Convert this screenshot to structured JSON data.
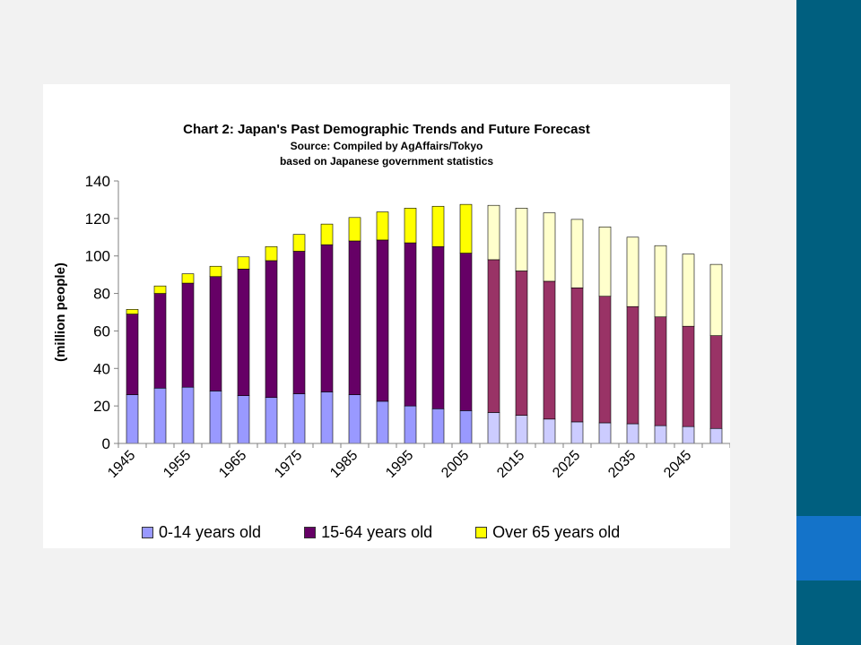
{
  "colors": {
    "child_past": "#9999ff",
    "child_future": "#ccccff",
    "working_past": "#660066",
    "working_future": "#993366",
    "elderly_past": "#ffff00",
    "elderly_future": "#ffffcc",
    "slide_sidebar": "#005f7f",
    "slide_sidebar_accent": "#1473c9"
  },
  "chart_data": {
    "type": "bar",
    "stacked": true,
    "title": "Chart 2: Japan's Past Demographic Trends and Future Forecast",
    "subtitle_line1": "Source: Compiled by AgAffairs/Tokyo",
    "subtitle_line2": "based on Japanese government statistics",
    "xlabel": "",
    "ylabel": "(million people)",
    "ylim": [
      0,
      140
    ],
    "yticks": [
      0,
      20,
      40,
      60,
      80,
      100,
      120,
      140
    ],
    "categories": [
      "1945",
      "1950",
      "1955",
      "1960",
      "1965",
      "1970",
      "1975",
      "1980",
      "1985",
      "1990",
      "1995",
      "2000",
      "2005",
      "2010",
      "2015",
      "2020",
      "2025",
      "2030",
      "2035",
      "2040",
      "2045",
      "2050"
    ],
    "xtick_labels": [
      "1945",
      "1955",
      "1965",
      "1975",
      "1985",
      "1995",
      "2005",
      "2015",
      "2025",
      "2035",
      "2045"
    ],
    "forecast_start_index": 13,
    "series": [
      {
        "name": "0-14 years old",
        "values": [
          26,
          29.5,
          30,
          28,
          25.5,
          24.5,
          26.5,
          27.5,
          26,
          22.5,
          20,
          18.5,
          17.5,
          16.5,
          15,
          13,
          11.5,
          11,
          10.5,
          9.5,
          9,
          8
        ]
      },
      {
        "name": "15-64 years old",
        "values": [
          43,
          50.5,
          55.5,
          61,
          67.5,
          73,
          76,
          78.5,
          82,
          86,
          87,
          86.5,
          84,
          81.5,
          77,
          73.5,
          71.5,
          67.5,
          62.5,
          58,
          53.5,
          49.5
        ]
      },
      {
        "name": "Over 65 years old",
        "values": [
          2.5,
          4,
          5,
          5.5,
          6.5,
          7.5,
          9,
          11,
          12.5,
          15,
          18.5,
          21.5,
          26,
          29,
          33.5,
          36.5,
          36.5,
          37,
          37,
          38,
          38.5,
          38
        ]
      }
    ],
    "legend_position": "bottom",
    "grid": false
  }
}
